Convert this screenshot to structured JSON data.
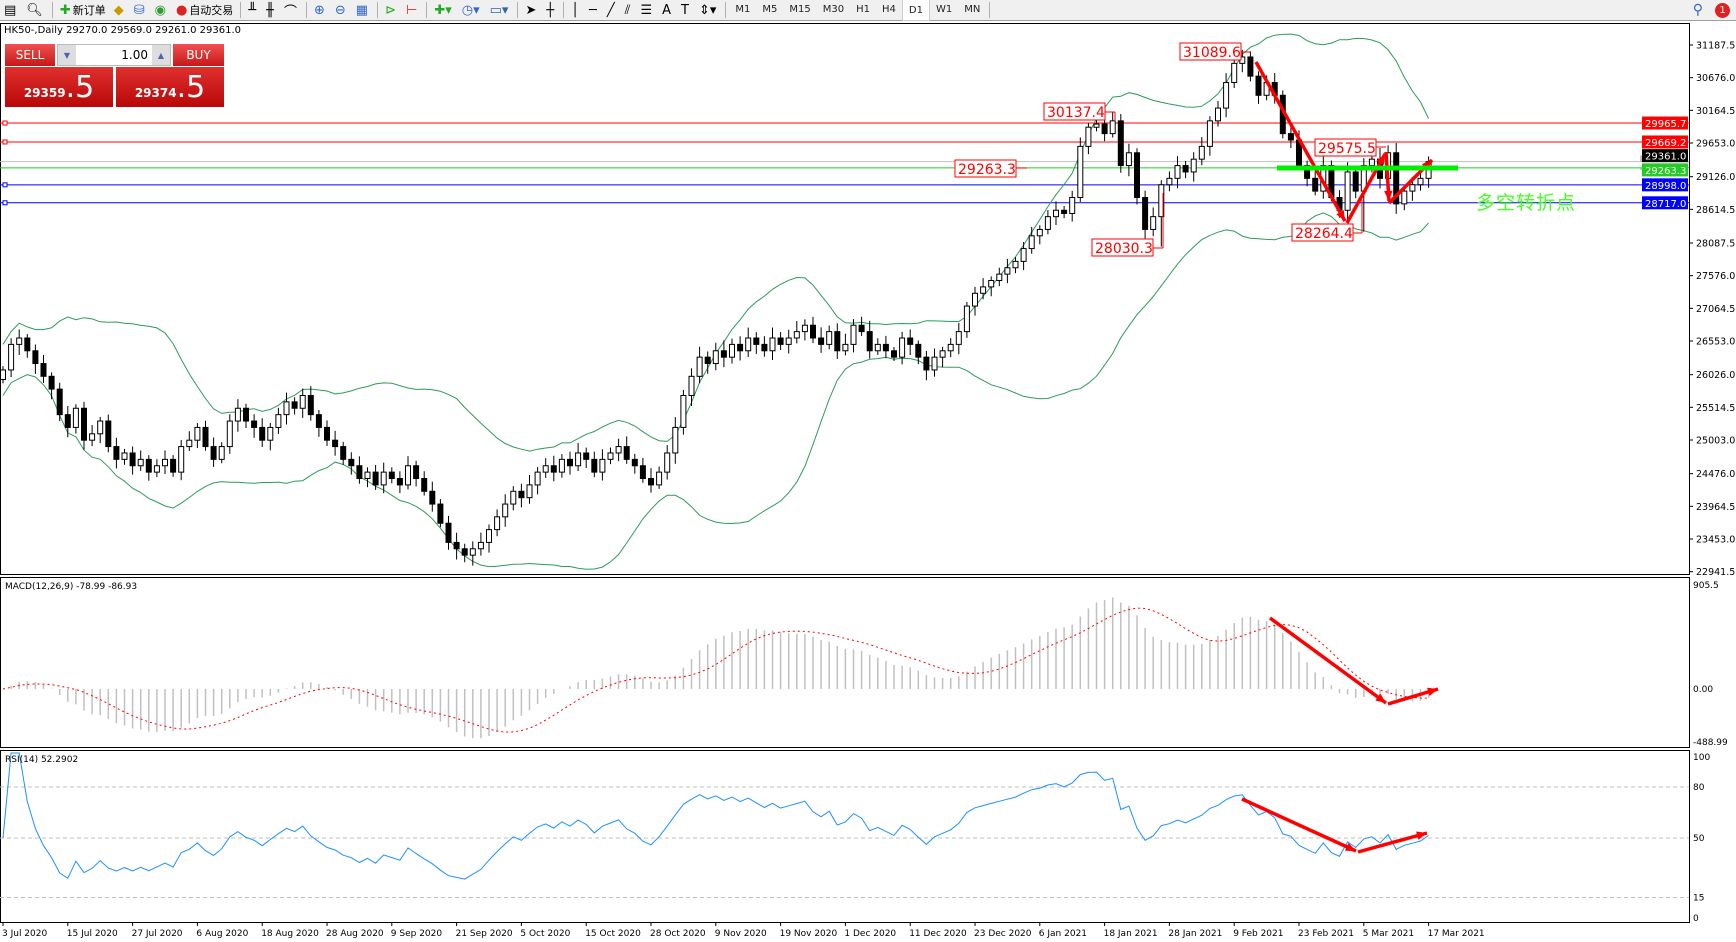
{
  "toolbar": {
    "new_order": "新订单",
    "auto_trading": "自动交易",
    "timeframes": [
      "M1",
      "M5",
      "M15",
      "M30",
      "H1",
      "H4",
      "D1",
      "W1",
      "MN"
    ],
    "active_timeframe": "D1",
    "notification_count": "1"
  },
  "chart": {
    "title": "HK50-,Daily  29270.0 29569.0 29261.0 29361.0",
    "annotation_text": "多空转折点"
  },
  "trade_panel": {
    "sell_label": "SELL",
    "buy_label": "BUY",
    "volume": "1.00",
    "sell_price_main": "29359",
    "sell_price_big": ".5",
    "buy_price_main": "29374",
    "buy_price_big": ".5"
  },
  "indicators": {
    "macd_label": "MACD(12,26,9) -78.99 -86.93",
    "rsi_label": "RSI(14) 52.2902"
  },
  "chart_data": {
    "type": "candlestick",
    "symbol": "HK50-",
    "timeframe": "Daily",
    "price_axis_ticks": [
      "31187.5",
      "30676.0",
      "30164.5",
      "29653.0",
      "29126.0",
      "28614.5",
      "28087.5",
      "27576.0",
      "27064.5",
      "26553.0",
      "26026.0",
      "25514.5",
      "25003.0",
      "24476.0",
      "23964.5",
      "23453.0",
      "22941.5"
    ],
    "ylim": [
      22941.5,
      31187.5
    ],
    "macd_axis_ticks": [
      "905.5",
      "0.00",
      "-488.99"
    ],
    "rsi_axis_ticks": [
      "100",
      "80",
      "50",
      "15",
      "0"
    ],
    "x_labels": [
      "3 Jul 2020",
      "15 Jul 2020",
      "27 Jul 2020",
      "6 Aug 2020",
      "18 Aug 2020",
      "28 Aug 2020",
      "9 Sep 2020",
      "21 Sep 2020",
      "5 Oct 2020",
      "15 Oct 2020",
      "28 Oct 2020",
      "9 Nov 2020",
      "19 Nov 2020",
      "1 Dec 2020",
      "11 Dec 2020",
      "23 Dec 2020",
      "6 Jan 2021",
      "18 Jan 2021",
      "28 Jan 2021",
      "9 Feb 2021",
      "23 Feb 2021",
      "5 Mar 2021",
      "17 Mar 2021"
    ],
    "closes": [
      26100,
      26500,
      26600,
      26400,
      26200,
      26000,
      25800,
      25400,
      25200,
      25500,
      25000,
      25100,
      25300,
      24900,
      24700,
      24800,
      24600,
      24700,
      24500,
      24600,
      24700,
      24500,
      24900,
      25000,
      25200,
      24900,
      24700,
      24900,
      25300,
      25500,
      25300,
      25200,
      25000,
      25200,
      25400,
      25600,
      25500,
      25700,
      25400,
      25200,
      25000,
      24900,
      24700,
      24600,
      24400,
      24500,
      24300,
      24500,
      24400,
      24300,
      24600,
      24400,
      24200,
      24000,
      23700,
      23400,
      23300,
      23200,
      23300,
      23400,
      23600,
      23800,
      24000,
      24200,
      24100,
      24300,
      24500,
      24600,
      24500,
      24700,
      24600,
      24800,
      24700,
      24500,
      24700,
      24800,
      24900,
      24700,
      24600,
      24400,
      24300,
      24500,
      24800,
      25200,
      25700,
      26000,
      26300,
      26200,
      26400,
      26300,
      26500,
      26400,
      26600,
      26500,
      26400,
      26600,
      26500,
      26600,
      26700,
      26800,
      26600,
      26500,
      26700,
      26400,
      26500,
      26800,
      26700,
      26400,
      26500,
      26400,
      26300,
      26600,
      26500,
      26300,
      26100,
      26300,
      26400,
      26500,
      26700,
      27100,
      27300,
      27400,
      27500,
      27600,
      27700,
      27800,
      28000,
      28200,
      28300,
      28500,
      28600,
      28550,
      28800,
      29600,
      29900,
      29950,
      29800,
      30000,
      29300,
      29500,
      28800,
      28300,
      28500,
      29000,
      29100,
      29300,
      29200,
      29400,
      29600,
      30000,
      30200,
      30600,
      30900,
      31000,
      30700,
      30400,
      30600,
      30400,
      29800,
      29700,
      29300,
      29100,
      28900,
      29300,
      28800,
      28600,
      29200,
      28900,
      29300,
      29400,
      29100,
      29500,
      28700,
      28900,
      29000,
      29100,
      29361
    ],
    "horizontal_levels": [
      {
        "value": "29965.7",
        "color": "#ff0000"
      },
      {
        "value": "29669.2",
        "color": "#ff0000"
      },
      {
        "value": "29361.0",
        "color": "#000000"
      },
      {
        "value": "29263.3",
        "color": "#22cc22"
      },
      {
        "value": "28998.0",
        "color": "#0000ff"
      },
      {
        "value": "28717.0",
        "color": "#0000ff"
      }
    ],
    "price_annotations": [
      "31089.6",
      "30137.4",
      "29263.3",
      "28030.3",
      "29575.5",
      "28264.4"
    ],
    "indicators": [
      "Bollinger Bands(20,2)",
      "MACD(12,26,9)",
      "RSI(14)"
    ],
    "colors": {
      "bands": "#2e9b5a",
      "macd_hist": "#c0c0c0",
      "macd_signal": "#ff0000",
      "rsi": "#1e90ff",
      "arrows": "#ff0000",
      "pivot_bar": "#00ee00"
    }
  }
}
